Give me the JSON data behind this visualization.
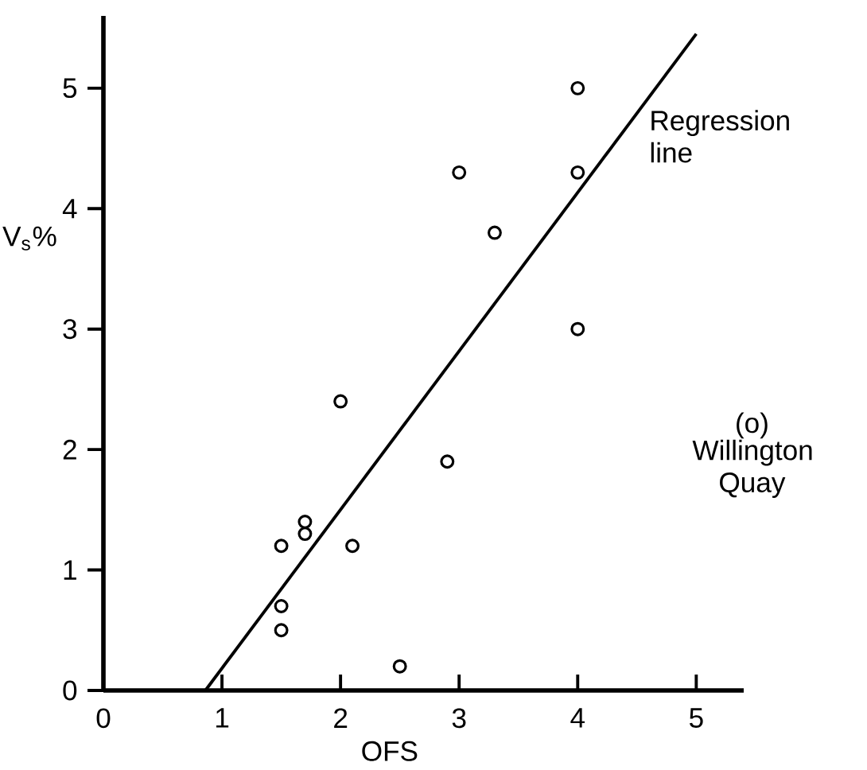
{
  "chart_data": {
    "type": "scatter",
    "xlabel": "OFS",
    "ylabel": "V$_{s}$%",
    "xlim": [
      0,
      5.4
    ],
    "ylim": [
      0,
      5.6
    ],
    "xticks": [
      0,
      1,
      2,
      3,
      4,
      5
    ],
    "yticks": [
      0,
      1,
      2,
      3,
      4,
      5
    ],
    "grid": false,
    "series": [
      {
        "marker": "circle",
        "color": "#000000",
        "x": [
          4.0,
          4.0,
          4.0,
          3.0,
          3.3,
          2.0,
          2.9,
          1.7,
          1.7,
          2.1,
          1.5,
          1.5,
          1.5,
          2.5
        ],
        "values": [
          5.0,
          4.3,
          3.0,
          4.3,
          3.8,
          2.4,
          1.9,
          1.4,
          1.3,
          1.2,
          1.2,
          0.7,
          0.5,
          0.2
        ]
      },
      {
        "type": "line",
        "marker": "none",
        "color": "#000000",
        "x": [
          0.86,
          5.0
        ],
        "values": [
          0,
          5.45
        ]
      }
    ],
    "annotations": [
      "Regression line",
      "(o)",
      "Willington Quay"
    ]
  }
}
